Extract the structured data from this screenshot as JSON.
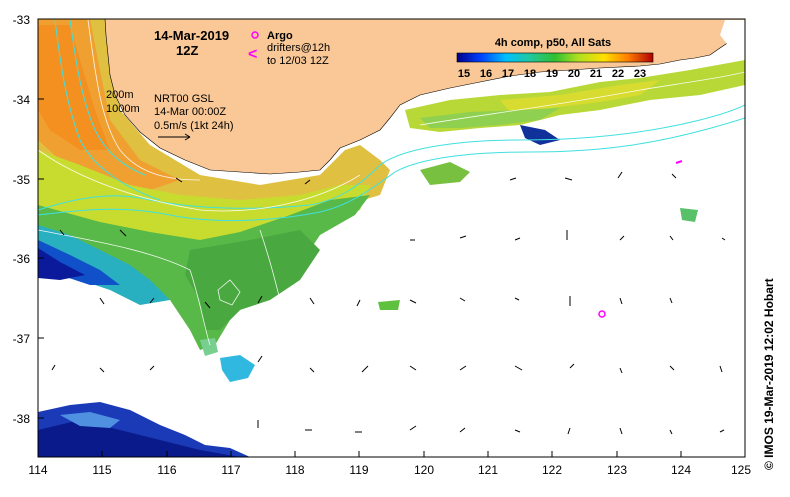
{
  "map": {
    "date": "14-Mar-2019",
    "time": "12Z",
    "argo_label": "Argo",
    "drifters_line1": "drifters@12h",
    "drifters_line2": "to 12/03 12Z",
    "drifter_symbol": "<",
    "colorbar_title": "4h comp, p50, All Sats",
    "colorbar_ticks": [
      "15",
      "16",
      "17",
      "18",
      "19",
      "20",
      "21",
      "22",
      "23"
    ],
    "isobath_1": "200m",
    "isobath_2": "1000m",
    "gsl_line1": "NRT00 GSL",
    "gsl_line2": "14-Mar 00:00Z",
    "gsl_line3": "0.5m/s (1kt 24h)",
    "credit": "© IMOS 19-Mar-2019 12:02 Hobart",
    "lon_ticks": [
      "114",
      "115",
      "116",
      "117",
      "118",
      "119",
      "120",
      "121",
      "122",
      "123",
      "124",
      "125"
    ],
    "lat_ticks": [
      "-33",
      "-34",
      "-35",
      "-36",
      "-37",
      "-38"
    ],
    "colors": {
      "land": "#f9c896",
      "argo": "#ff00ff",
      "isobath": "#40e0e0",
      "frame": "#000000"
    }
  }
}
